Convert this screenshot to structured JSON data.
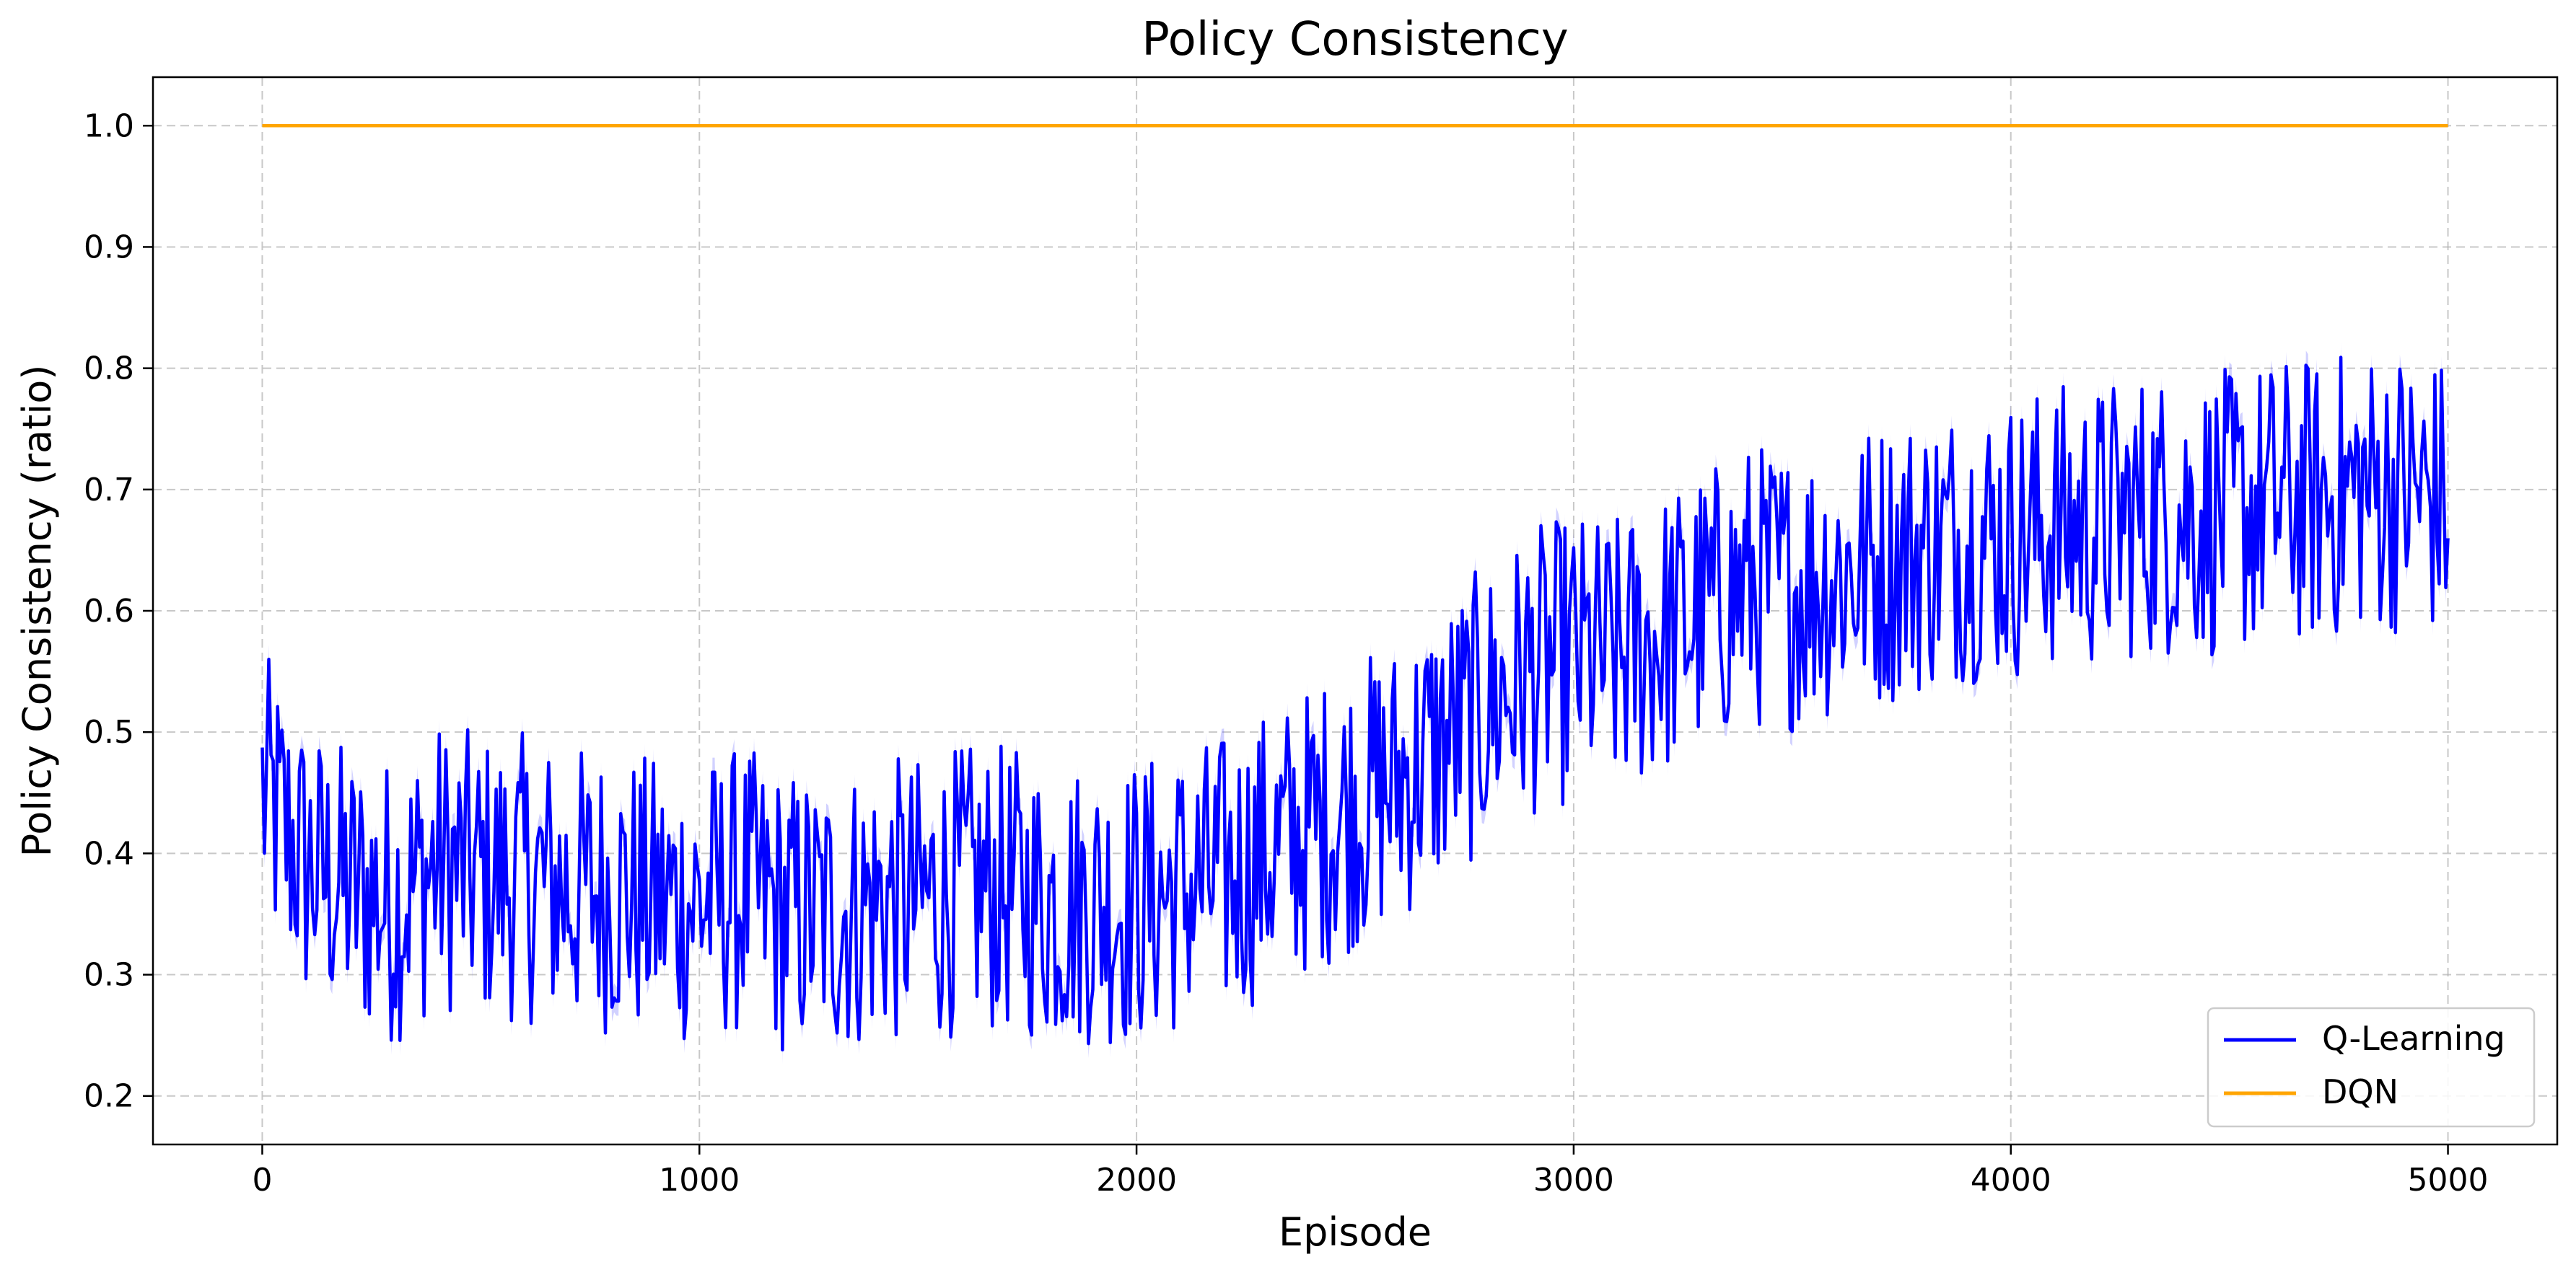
{
  "chart_data": {
    "type": "line",
    "title": "Policy Consistency",
    "xlabel": "Episode",
    "ylabel": "Policy Consistency (ratio)",
    "xlim": [
      -250,
      5250
    ],
    "ylim": [
      0.16,
      1.04
    ],
    "xticks": [
      0,
      1000,
      2000,
      3000,
      4000,
      5000
    ],
    "xtick_labels": [
      "0",
      "1000",
      "2000",
      "3000",
      "4000",
      "5000"
    ],
    "yticks": [
      0.2,
      0.3,
      0.4,
      0.5,
      0.6,
      0.7,
      0.8,
      0.9,
      1.0
    ],
    "ytick_labels": [
      "0.2",
      "0.3",
      "0.4",
      "0.5",
      "0.6",
      "0.7",
      "0.8",
      "0.9",
      "1.0"
    ],
    "grid": true,
    "legend_position": "bottom-right",
    "series": [
      {
        "name": "Q-Learning",
        "color": "#0000ff",
        "x": [
          0,
          100,
          200,
          300,
          400,
          500,
          600,
          700,
          800,
          900,
          1000,
          1100,
          1200,
          1300,
          1400,
          1500,
          1600,
          1700,
          1800,
          1900,
          2000,
          2100,
          2200,
          2300,
          2400,
          2500,
          2600,
          2700,
          2800,
          2900,
          3000,
          3100,
          3200,
          3300,
          3400,
          3500,
          3600,
          3700,
          3800,
          3900,
          4000,
          4100,
          4200,
          4300,
          4400,
          4500,
          4600,
          4700,
          4800,
          4900,
          5000
        ],
        "y": [
          0.45,
          0.39,
          0.37,
          0.36,
          0.39,
          0.38,
          0.38,
          0.37,
          0.37,
          0.36,
          0.36,
          0.37,
          0.35,
          0.35,
          0.36,
          0.36,
          0.37,
          0.37,
          0.36,
          0.36,
          0.36,
          0.37,
          0.38,
          0.4,
          0.42,
          0.44,
          0.46,
          0.49,
          0.52,
          0.55,
          0.56,
          0.56,
          0.58,
          0.6,
          0.62,
          0.62,
          0.63,
          0.64,
          0.65,
          0.66,
          0.66,
          0.67,
          0.67,
          0.68,
          0.68,
          0.68,
          0.69,
          0.69,
          0.7,
          0.7,
          0.69
        ],
        "noise_amplitude": 0.12
      },
      {
        "name": "DQN",
        "color": "#ffa500",
        "x": [
          0,
          5000
        ],
        "y": [
          1.0,
          1.0
        ]
      }
    ]
  }
}
